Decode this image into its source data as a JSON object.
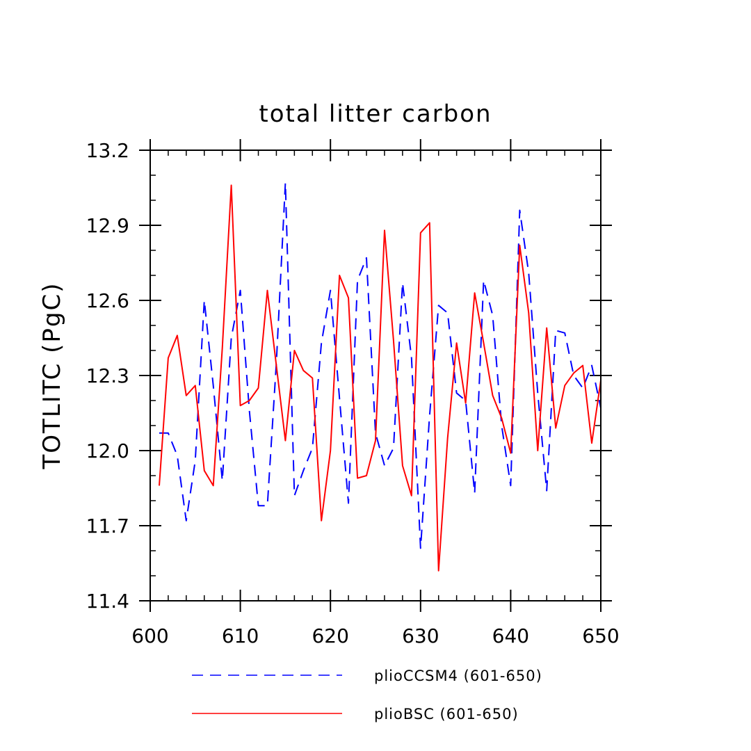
{
  "chart_data": {
    "type": "line",
    "title": "total litter carbon",
    "xlabel": "",
    "ylabel": "TOTLITC  (PgC)",
    "xlim": [
      600,
      650
    ],
    "ylim": [
      11.4,
      13.2
    ],
    "xticks": [
      600,
      610,
      620,
      630,
      640,
      650
    ],
    "yticks": [
      11.4,
      11.7,
      12.0,
      12.3,
      12.6,
      12.9,
      13.2
    ],
    "xtick_labels": [
      "600",
      "610",
      "620",
      "630",
      "640",
      "650"
    ],
    "ytick_labels": [
      "11.4",
      "11.7",
      "12.0",
      "12.3",
      "12.6",
      "12.9",
      "13.2"
    ],
    "grid": false,
    "legend_position": "bottom",
    "x": [
      601,
      602,
      603,
      604,
      605,
      606,
      607,
      608,
      609,
      610,
      611,
      612,
      613,
      614,
      615,
      616,
      617,
      618,
      619,
      620,
      621,
      622,
      623,
      624,
      625,
      626,
      627,
      628,
      629,
      630,
      631,
      632,
      633,
      634,
      635,
      636,
      637,
      638,
      639,
      640,
      641,
      642,
      643,
      644,
      645,
      646,
      647,
      648,
      649,
      650
    ],
    "series": [
      {
        "name": "plioCCSM4 (601-650)",
        "color": "#0000ff",
        "dash": "dashed",
        "values": [
          12.07,
          12.07,
          11.98,
          11.72,
          11.96,
          12.6,
          12.26,
          11.88,
          12.45,
          12.64,
          12.16,
          11.78,
          11.78,
          12.35,
          13.07,
          11.82,
          11.92,
          12.01,
          12.43,
          12.64,
          12.21,
          11.79,
          12.68,
          12.77,
          12.07,
          11.94,
          12.01,
          12.67,
          12.37,
          11.61,
          12.14,
          12.58,
          12.55,
          12.23,
          12.2,
          11.83,
          12.68,
          12.54,
          12.1,
          11.86,
          12.96,
          12.71,
          12.23,
          11.84,
          12.48,
          12.47,
          12.3,
          12.25,
          12.34,
          12.17
        ]
      },
      {
        "name": "plioBSC (601-650)",
        "color": "#ff0000",
        "dash": "solid",
        "values": [
          11.86,
          12.37,
          12.46,
          12.22,
          12.26,
          11.92,
          11.86,
          12.41,
          13.06,
          12.18,
          12.2,
          12.25,
          12.64,
          12.34,
          12.04,
          12.4,
          12.32,
          12.29,
          11.72,
          12.0,
          12.7,
          12.61,
          11.89,
          11.9,
          12.04,
          12.88,
          12.44,
          11.94,
          11.82,
          12.87,
          12.91,
          11.52,
          12.05,
          12.43,
          12.19,
          12.63,
          12.43,
          12.22,
          12.13,
          11.99,
          12.82,
          12.55,
          12.0,
          12.49,
          12.09,
          12.26,
          12.31,
          12.34,
          12.03,
          12.28
        ]
      }
    ]
  }
}
